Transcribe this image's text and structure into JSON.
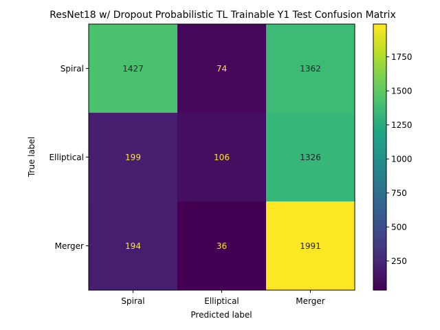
{
  "chart_data": {
    "type": "heatmap",
    "title": "ResNet18 w/ Dropout Probabilistic TL Trainable Y1 Test Confusion Matrix",
    "xlabel": "Predicted label",
    "ylabel": "True label",
    "x_categories": [
      "Spiral",
      "Elliptical",
      "Merger"
    ],
    "y_categories": [
      "Spiral",
      "Elliptical",
      "Merger"
    ],
    "matrix": [
      [
        1427,
        74,
        1362
      ],
      [
        199,
        106,
        1326
      ],
      [
        194,
        36,
        1991
      ]
    ],
    "colormap": "viridis",
    "color_range": [
      36,
      1991
    ],
    "colorbar_ticks": [
      250,
      500,
      750,
      1000,
      1250,
      1500,
      1750
    ],
    "text_colors": {
      "light_cell": "#1f1f2e",
      "dark_cell": "#fde725"
    }
  }
}
